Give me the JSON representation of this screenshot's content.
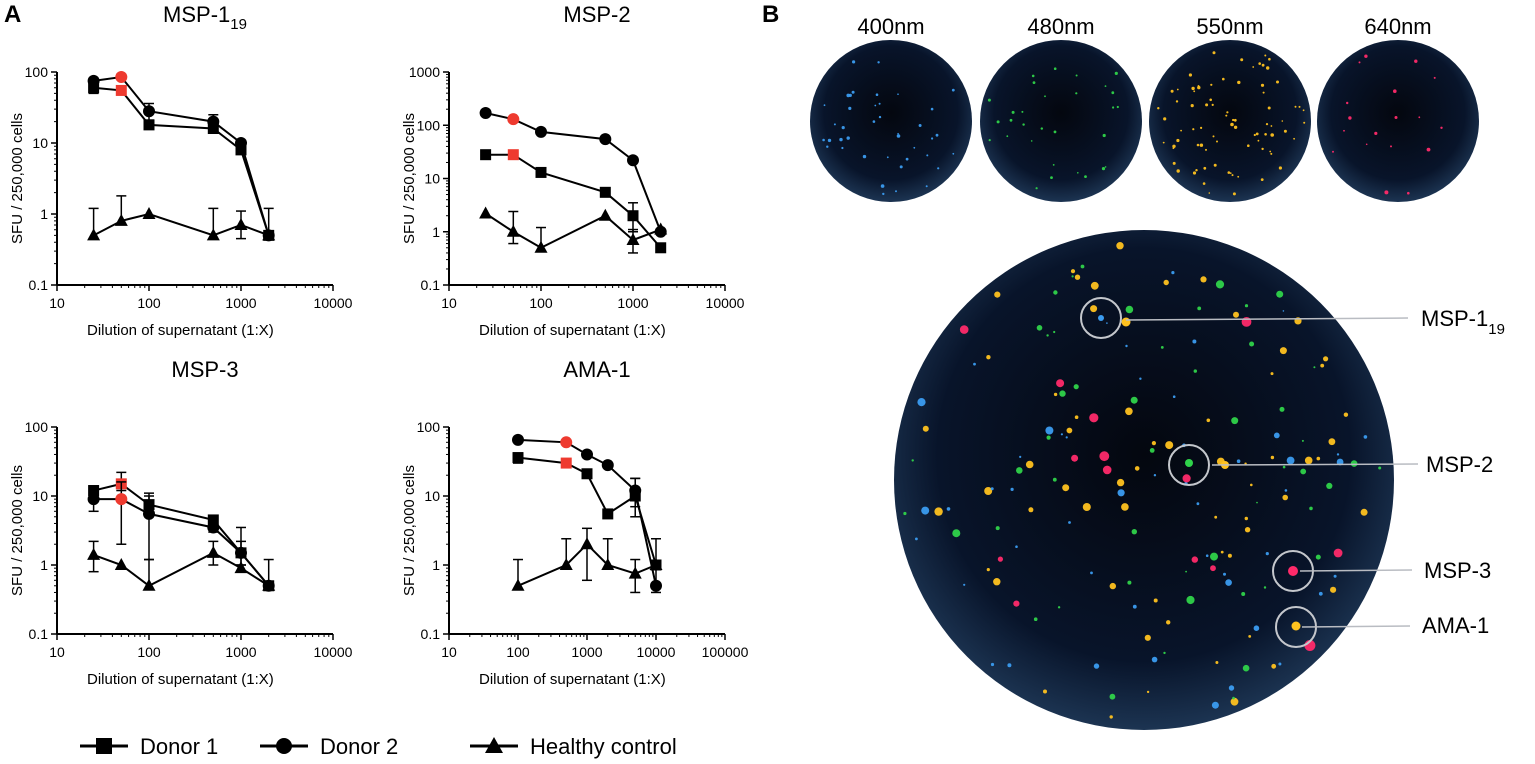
{
  "panel_labels": {
    "a": "A",
    "b": "B"
  },
  "legend": [
    {
      "name": "Donor 1",
      "marker": "square"
    },
    {
      "name": "Donor 2",
      "marker": "circle"
    },
    {
      "name": "Healthy control",
      "marker": "triangle"
    }
  ],
  "colors": {
    "series": "#000000",
    "highlight": "#ee3a2f",
    "well_bg": "#050b18",
    "well_edge": "#2c3e5a",
    "blue_spot": "#3b9cf0",
    "green_spot": "#2fd34a",
    "yellow_spot": "#ffc21f",
    "red_spot": "#ff2a6a",
    "callout": "#b9bcc2"
  },
  "chart_data": [
    {
      "type": "line",
      "title": "MSP-1",
      "title_sub": "19",
      "xlabel": "Dilution of supernatant (1:X)",
      "ylabel": "SFU / 250,000 cells",
      "xscale": "log",
      "yscale": "log",
      "xlim": [
        10,
        10000
      ],
      "ylim": [
        0.1,
        100
      ],
      "xticks": [
        10,
        100,
        1000,
        10000
      ],
      "xtick_labels": [
        "10",
        "100",
        "1000",
        "10000"
      ],
      "yticks": [
        0.1,
        1,
        10,
        100
      ],
      "ytick_labels": [
        "0.1",
        "1",
        "10",
        "100"
      ],
      "series": [
        {
          "name": "Donor 1",
          "marker": "square",
          "highlight_index": 1,
          "points": [
            {
              "x": 25,
              "y": 60,
              "lo": 50,
              "hi": 70
            },
            {
              "x": 50,
              "y": 55
            },
            {
              "x": 100,
              "y": 18,
              "lo": 16,
              "hi": 21
            },
            {
              "x": 500,
              "y": 16,
              "lo": 14,
              "hi": 18
            },
            {
              "x": 1000,
              "y": 8,
              "lo": 7,
              "hi": 10
            },
            {
              "x": 2000,
              "y": 0.5
            }
          ]
        },
        {
          "name": "Donor 2",
          "marker": "circle",
          "highlight_index": 1,
          "points": [
            {
              "x": 25,
              "y": 75
            },
            {
              "x": 50,
              "y": 85
            },
            {
              "x": 100,
              "y": 28,
              "lo": 20,
              "hi": 36
            },
            {
              "x": 500,
              "y": 20,
              "lo": 16,
              "hi": 25
            },
            {
              "x": 1000,
              "y": 10
            },
            {
              "x": 2000,
              "y": 0.5
            }
          ]
        },
        {
          "name": "Healthy control",
          "marker": "triangle",
          "points": [
            {
              "x": 25,
              "y": 0.5,
              "hi": 1.2
            },
            {
              "x": 50,
              "y": 0.8,
              "hi": 1.8
            },
            {
              "x": 100,
              "y": 1.0
            },
            {
              "x": 500,
              "y": 0.5,
              "hi": 1.2
            },
            {
              "x": 1000,
              "y": 0.7,
              "lo": 0.45,
              "hi": 1.1
            },
            {
              "x": 2000,
              "y": 0.5,
              "hi": 1.2
            }
          ]
        }
      ]
    },
    {
      "type": "line",
      "title": "MSP-2",
      "title_sub": "",
      "xlabel": "Dilution of supernatant (1:X)",
      "ylabel": "SFU / 250,000 cells",
      "xscale": "log",
      "yscale": "log",
      "xlim": [
        10,
        10000
      ],
      "ylim": [
        0.1,
        1000
      ],
      "xticks": [
        10,
        100,
        1000,
        10000
      ],
      "xtick_labels": [
        "10",
        "100",
        "1000",
        "10000"
      ],
      "yticks": [
        0.1,
        1,
        10,
        100,
        1000
      ],
      "ytick_labels": [
        "0.1",
        "1",
        "10",
        "100",
        "1000"
      ],
      "series": [
        {
          "name": "Donor 1",
          "marker": "square",
          "highlight_index": 1,
          "points": [
            {
              "x": 25,
              "y": 28
            },
            {
              "x": 50,
              "y": 28
            },
            {
              "x": 100,
              "y": 13
            },
            {
              "x": 500,
              "y": 5.5
            },
            {
              "x": 1000,
              "y": 2,
              "lo": 1,
              "hi": 3.5
            },
            {
              "x": 2000,
              "y": 0.5
            }
          ]
        },
        {
          "name": "Donor 2",
          "marker": "circle",
          "highlight_index": 1,
          "points": [
            {
              "x": 25,
              "y": 170
            },
            {
              "x": 50,
              "y": 130
            },
            {
              "x": 100,
              "y": 75
            },
            {
              "x": 500,
              "y": 55
            },
            {
              "x": 1000,
              "y": 22
            },
            {
              "x": 2000,
              "y": 1
            }
          ]
        },
        {
          "name": "Healthy control",
          "marker": "triangle",
          "points": [
            {
              "x": 25,
              "y": 2.2
            },
            {
              "x": 50,
              "y": 1,
              "lo": 0.6,
              "hi": 2.4
            },
            {
              "x": 100,
              "y": 0.5,
              "hi": 1.2
            },
            {
              "x": 500,
              "y": 2
            },
            {
              "x": 1000,
              "y": 0.7,
              "lo": 0.4,
              "hi": 1.1
            },
            {
              "x": 2000,
              "y": 1.1
            }
          ]
        }
      ]
    },
    {
      "type": "line",
      "title": "MSP-3",
      "title_sub": "",
      "xlabel": "Dilution of supernatant (1:X)",
      "ylabel": "SFU / 250,000 cells",
      "xscale": "log",
      "yscale": "log",
      "xlim": [
        10,
        10000
      ],
      "ylim": [
        0.1,
        100
      ],
      "xticks": [
        10,
        100,
        1000,
        10000
      ],
      "xtick_labels": [
        "10",
        "100",
        "1000",
        "10000"
      ],
      "yticks": [
        0.1,
        1,
        10,
        100
      ],
      "ytick_labels": [
        "0.1",
        "1",
        "10",
        "100"
      ],
      "series": [
        {
          "name": "Donor 1",
          "marker": "square",
          "highlight_index": 1,
          "points": [
            {
              "x": 25,
              "y": 12,
              "lo": 10,
              "hi": 14
            },
            {
              "x": 50,
              "y": 15,
              "lo": 12,
              "hi": 22
            },
            {
              "x": 100,
              "y": 7.5,
              "lo": 5,
              "hi": 11
            },
            {
              "x": 500,
              "y": 4.5,
              "lo": 4,
              "hi": 5
            },
            {
              "x": 1000,
              "y": 1.5,
              "lo": 1,
              "hi": 2.2
            },
            {
              "x": 2000,
              "y": 0.5
            }
          ]
        },
        {
          "name": "Donor 2",
          "marker": "circle",
          "highlight_index": 1,
          "points": [
            {
              "x": 25,
              "y": 9,
              "lo": 6,
              "hi": 12
            },
            {
              "x": 50,
              "y": 9,
              "lo": 2,
              "hi": 16
            },
            {
              "x": 100,
              "y": 5.5,
              "lo": 1.2,
              "hi": 10
            },
            {
              "x": 500,
              "y": 3.5,
              "lo": 3,
              "hi": 4
            },
            {
              "x": 1000,
              "y": 1.5,
              "lo": 1,
              "hi": 3.5
            },
            {
              "x": 2000,
              "y": 0.5,
              "hi": 1.2
            }
          ]
        },
        {
          "name": "Healthy control",
          "marker": "triangle",
          "points": [
            {
              "x": 25,
              "y": 1.4,
              "lo": 0.8,
              "hi": 2.2
            },
            {
              "x": 50,
              "y": 1
            },
            {
              "x": 100,
              "y": 0.5,
              "hi": 1.2
            },
            {
              "x": 500,
              "y": 1.5,
              "lo": 1,
              "hi": 2.2
            },
            {
              "x": 1000,
              "y": 0.9
            },
            {
              "x": 2000,
              "y": 0.5
            }
          ]
        }
      ]
    },
    {
      "type": "line",
      "title": "AMA-1",
      "title_sub": "",
      "xlabel": "Dilution of supernatant (1:X)",
      "ylabel": "SFU / 250,000 cells",
      "xscale": "log",
      "yscale": "log",
      "xlim": [
        10,
        100000
      ],
      "ylim": [
        0.1,
        100
      ],
      "xticks": [
        10,
        100,
        1000,
        10000,
        100000
      ],
      "xtick_labels": [
        "10",
        "100",
        "1000",
        "10000",
        "100000"
      ],
      "yticks": [
        0.1,
        1,
        10,
        100
      ],
      "ytick_labels": [
        "0.1",
        "1",
        "10",
        "100"
      ],
      "series": [
        {
          "name": "Donor 1",
          "marker": "square",
          "highlight_index": 1,
          "points": [
            {
              "x": 100,
              "y": 36,
              "lo": 30,
              "hi": 42
            },
            {
              "x": 500,
              "y": 30
            },
            {
              "x": 1000,
              "y": 21
            },
            {
              "x": 2000,
              "y": 5.5
            },
            {
              "x": 5000,
              "y": 10,
              "lo": 5,
              "hi": 18
            },
            {
              "x": 10000,
              "y": 1
            }
          ]
        },
        {
          "name": "Donor 2",
          "marker": "circle",
          "highlight_index": 1,
          "points": [
            {
              "x": 100,
              "y": 65
            },
            {
              "x": 500,
              "y": 60
            },
            {
              "x": 1000,
              "y": 40
            },
            {
              "x": 2000,
              "y": 28
            },
            {
              "x": 5000,
              "y": 12,
              "lo": 7,
              "hi": 18
            },
            {
              "x": 10000,
              "y": 0.5
            }
          ]
        },
        {
          "name": "Healthy control",
          "marker": "triangle",
          "points": [
            {
              "x": 100,
              "y": 0.5,
              "hi": 1.2
            },
            {
              "x": 500,
              "y": 1,
              "hi": 2.4
            },
            {
              "x": 1000,
              "y": 2,
              "lo": 0.6,
              "hi": 3.4
            },
            {
              "x": 2000,
              "y": 1,
              "hi": 2.4
            },
            {
              "x": 5000,
              "y": 0.75,
              "lo": 0.4,
              "hi": 1.2
            },
            {
              "x": 10000,
              "y": 1,
              "lo": 0.4,
              "hi": 2.4
            }
          ]
        }
      ]
    }
  ],
  "wells": {
    "wavelengths": [
      "400nm",
      "480nm",
      "550nm",
      "640nm"
    ],
    "callouts": [
      {
        "label": "MSP-1",
        "sub": "19"
      },
      {
        "label": "MSP-2",
        "sub": ""
      },
      {
        "label": "MSP-3",
        "sub": ""
      },
      {
        "label": "AMA-1",
        "sub": ""
      }
    ]
  }
}
